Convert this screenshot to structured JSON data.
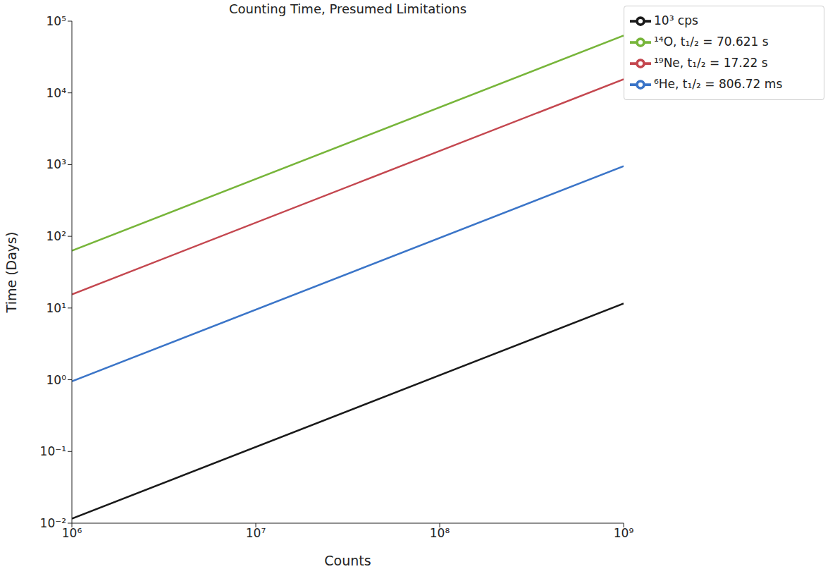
{
  "chart_data": {
    "type": "line",
    "title": "Counting Time, Presumed Limitations",
    "x_label": "Counts",
    "y_label": "Time (Days)",
    "log": true,
    "grid": false,
    "legend": "right",
    "x": [
      1000000,
      1000000000
    ],
    "series": [
      {
        "name": "⁶He, t₁/₂ = 806.72 ms",
        "color": "#3b75c8",
        "values": [
          0.95,
          950
        ]
      },
      {
        "name": "¹⁹Ne, t₁/₂ = 17.22 s",
        "color": "#c4474f",
        "values": [
          15.5,
          15500
        ]
      },
      {
        "name": "¹⁴O, t₁/₂ = 70.621 s",
        "color": "#77b53a",
        "values": [
          63,
          63000
        ]
      },
      {
        "name": "10³ cps",
        "color": "#1a1a1a",
        "values": [
          0.01157,
          11.57
        ]
      }
    ],
    "xlim": [
      1000000,
      1000000000
    ],
    "xticks": [
      {
        "value": 1000000,
        "label": "10⁶"
      },
      {
        "value": 10000000,
        "label": "10⁷"
      },
      {
        "value": 100000000,
        "label": "10⁸"
      },
      {
        "value": 1000000000,
        "label": "10⁹"
      }
    ],
    "ylim": [
      0.01,
      100000
    ],
    "yticks": [
      {
        "value": 0.01,
        "label": "10⁻²"
      },
      {
        "value": 0.1,
        "label": "10⁻¹"
      },
      {
        "value": 1,
        "label": "10⁰"
      },
      {
        "value": 10,
        "label": "10¹"
      },
      {
        "value": 100,
        "label": "10²"
      },
      {
        "value": 1000,
        "label": "10³"
      },
      {
        "value": 10000,
        "label": "10⁴"
      },
      {
        "value": 100000,
        "label": "10⁵"
      }
    ]
  }
}
